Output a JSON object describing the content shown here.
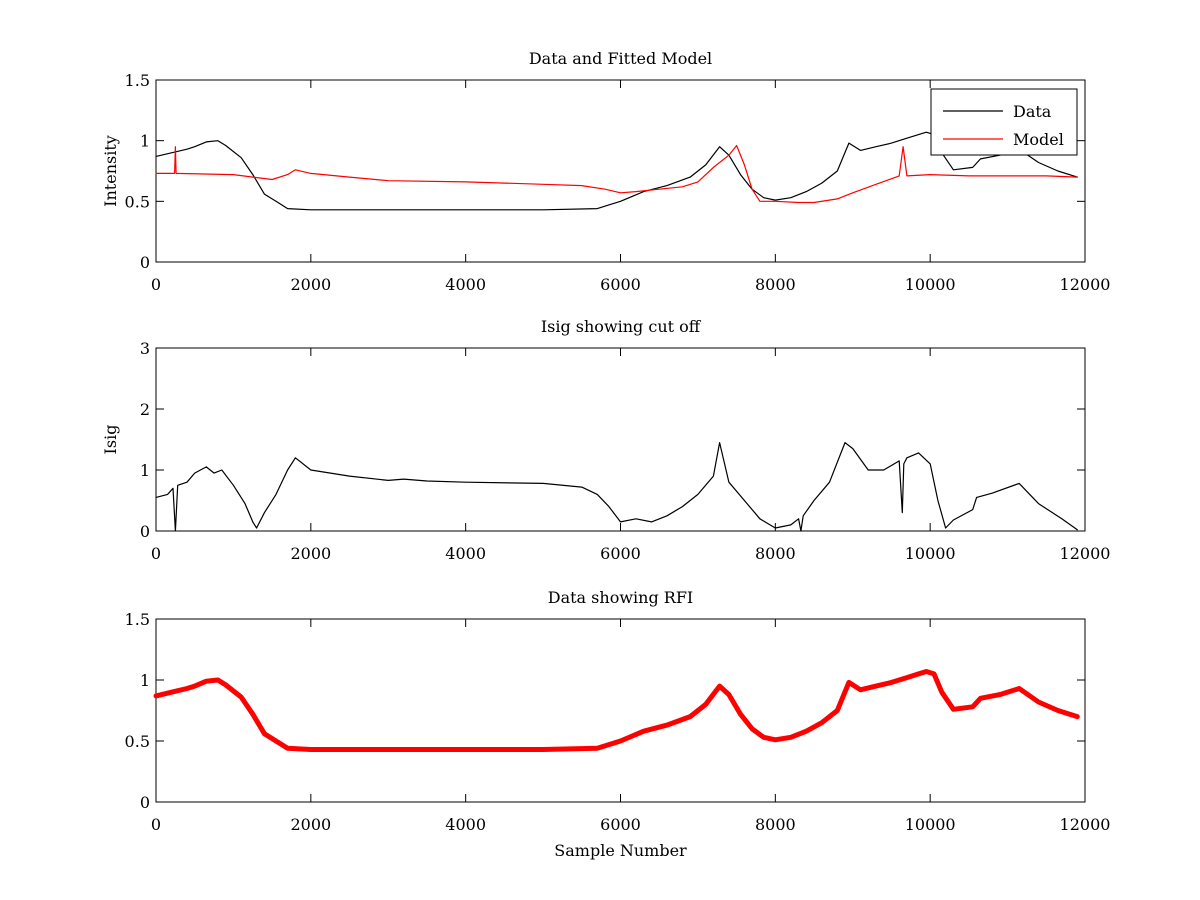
{
  "chart_data": [
    {
      "type": "line",
      "title": "Data and Fitted Model",
      "xlabel": "",
      "ylabel": "Intensity",
      "xlim": [
        0,
        12000
      ],
      "ylim": [
        0,
        1.5
      ],
      "xticks": [
        0,
        2000,
        4000,
        6000,
        8000,
        10000,
        12000
      ],
      "yticks": [
        0,
        0.5,
        1,
        1.5
      ],
      "xtick_labels": [
        "0",
        "2000",
        "4000",
        "6000",
        "8000",
        "10000",
        "12000"
      ],
      "ytick_labels": [
        "0",
        "0.5",
        "1",
        "1.5"
      ],
      "grid": false,
      "legend": {
        "placement": "top-right",
        "entries": [
          "Data",
          "Model"
        ]
      },
      "series": [
        {
          "name": "Data",
          "color": "#000000",
          "x": [
            0,
            200,
            400,
            500,
            650,
            800,
            900,
            1100,
            1250,
            1400,
            1550,
            1700,
            2000,
            3000,
            4000,
            5000,
            5700,
            6000,
            6300,
            6600,
            6900,
            7100,
            7280,
            7400,
            7550,
            7700,
            7850,
            8000,
            8200,
            8400,
            8600,
            8800,
            8950,
            9100,
            9300,
            9500,
            9700,
            9850,
            9950,
            10050,
            10150,
            10300,
            10550,
            10650,
            10900,
            11150,
            11400,
            11650,
            11900
          ],
          "y": [
            0.87,
            0.9,
            0.93,
            0.95,
            0.99,
            1.0,
            0.96,
            0.86,
            0.72,
            0.56,
            0.5,
            0.44,
            0.43,
            0.43,
            0.43,
            0.43,
            0.44,
            0.5,
            0.58,
            0.63,
            0.7,
            0.8,
            0.95,
            0.88,
            0.72,
            0.6,
            0.53,
            0.51,
            0.53,
            0.58,
            0.65,
            0.75,
            0.98,
            0.92,
            0.95,
            0.98,
            1.02,
            1.05,
            1.07,
            1.05,
            0.9,
            0.76,
            0.78,
            0.85,
            0.88,
            0.93,
            0.82,
            0.75,
            0.7
          ]
        },
        {
          "name": "Model",
          "color": "#ff0000",
          "x": [
            0,
            240,
            250,
            260,
            1000,
            1500,
            1700,
            1800,
            2000,
            2500,
            3000,
            4000,
            5000,
            5500,
            5800,
            6000,
            6200,
            6500,
            6800,
            7000,
            7200,
            7400,
            7500,
            7600,
            7700,
            7800,
            8000,
            8300,
            8500,
            8800,
            9000,
            9300,
            9600,
            9650,
            9700,
            10000,
            10500,
            11000,
            11500,
            11900
          ],
          "y": [
            0.73,
            0.73,
            0.95,
            0.73,
            0.72,
            0.68,
            0.72,
            0.76,
            0.73,
            0.7,
            0.67,
            0.66,
            0.64,
            0.63,
            0.6,
            0.57,
            0.58,
            0.6,
            0.62,
            0.66,
            0.78,
            0.88,
            0.96,
            0.8,
            0.6,
            0.5,
            0.5,
            0.49,
            0.49,
            0.52,
            0.57,
            0.64,
            0.71,
            0.95,
            0.71,
            0.72,
            0.71,
            0.71,
            0.71,
            0.7
          ]
        }
      ]
    },
    {
      "type": "line",
      "title": "Isig showing cut off",
      "xlabel": "",
      "ylabel": "Isig",
      "xlim": [
        0,
        12000
      ],
      "ylim": [
        0,
        3
      ],
      "xticks": [
        0,
        2000,
        4000,
        6000,
        8000,
        10000,
        12000
      ],
      "yticks": [
        0,
        1,
        2,
        3
      ],
      "xtick_labels": [
        "0",
        "2000",
        "4000",
        "6000",
        "8000",
        "10000",
        "12000"
      ],
      "ytick_labels": [
        "0",
        "1",
        "2",
        "3"
      ],
      "grid": false,
      "series": [
        {
          "color": "#000000",
          "x": [
            0,
            150,
            220,
            250,
            280,
            400,
            500,
            650,
            750,
            850,
            1000,
            1150,
            1250,
            1300,
            1400,
            1550,
            1700,
            1800,
            2000,
            2500,
            3000,
            3200,
            3500,
            4000,
            5000,
            5500,
            5700,
            5850,
            6000,
            6200,
            6400,
            6600,
            6800,
            7000,
            7200,
            7280,
            7400,
            7600,
            7800,
            8000,
            8200,
            8300,
            8330,
            8360,
            8500,
            8700,
            8900,
            9000,
            9200,
            9400,
            9600,
            9640,
            9660,
            9700,
            9850,
            10000,
            10100,
            10200,
            10300,
            10550,
            10600,
            10800,
            11150,
            11400,
            11700,
            11900
          ],
          "y": [
            0.55,
            0.6,
            0.7,
            0.0,
            0.75,
            0.8,
            0.95,
            1.05,
            0.95,
            1.0,
            0.75,
            0.45,
            0.15,
            0.05,
            0.3,
            0.6,
            1.0,
            1.2,
            1.0,
            0.9,
            0.83,
            0.85,
            0.82,
            0.8,
            0.78,
            0.72,
            0.6,
            0.4,
            0.15,
            0.2,
            0.15,
            0.25,
            0.4,
            0.6,
            0.9,
            1.45,
            0.8,
            0.5,
            0.2,
            0.05,
            0.1,
            0.2,
            0.0,
            0.25,
            0.5,
            0.8,
            1.45,
            1.35,
            1.0,
            1.0,
            1.15,
            0.3,
            1.1,
            1.2,
            1.28,
            1.1,
            0.5,
            0.05,
            0.18,
            0.35,
            0.55,
            0.62,
            0.78,
            0.45,
            0.2,
            0.02
          ]
        }
      ]
    },
    {
      "type": "line",
      "title": "Data showing RFI",
      "xlabel": "Sample Number",
      "ylabel": "",
      "xlim": [
        0,
        12000
      ],
      "ylim": [
        0,
        1.5
      ],
      "xticks": [
        0,
        2000,
        4000,
        6000,
        8000,
        10000,
        12000
      ],
      "yticks": [
        0,
        0.5,
        1,
        1.5
      ],
      "xtick_labels": [
        "0",
        "2000",
        "4000",
        "6000",
        "8000",
        "10000",
        "12000"
      ],
      "ytick_labels": [
        "0",
        "0.5",
        "1",
        "1.5"
      ],
      "grid": false,
      "series": [
        {
          "color": "#ff0000",
          "x": [
            0,
            200,
            400,
            500,
            650,
            800,
            900,
            1100,
            1250,
            1400,
            1550,
            1700,
            2000,
            3000,
            4000,
            5000,
            5700,
            6000,
            6300,
            6600,
            6900,
            7100,
            7280,
            7400,
            7550,
            7700,
            7850,
            8000,
            8200,
            8400,
            8600,
            8800,
            8950,
            9100,
            9300,
            9500,
            9700,
            9850,
            9950,
            10050,
            10150,
            10300,
            10550,
            10650,
            10900,
            11150,
            11400,
            11650,
            11900
          ],
          "y": [
            0.87,
            0.9,
            0.93,
            0.95,
            0.99,
            1.0,
            0.96,
            0.86,
            0.72,
            0.56,
            0.5,
            0.44,
            0.43,
            0.43,
            0.43,
            0.43,
            0.44,
            0.5,
            0.58,
            0.63,
            0.7,
            0.8,
            0.95,
            0.88,
            0.72,
            0.6,
            0.53,
            0.51,
            0.53,
            0.58,
            0.65,
            0.75,
            0.98,
            0.92,
            0.95,
            0.98,
            1.02,
            1.05,
            1.07,
            1.05,
            0.9,
            0.76,
            0.78,
            0.85,
            0.88,
            0.93,
            0.82,
            0.75,
            0.7
          ]
        }
      ]
    }
  ]
}
